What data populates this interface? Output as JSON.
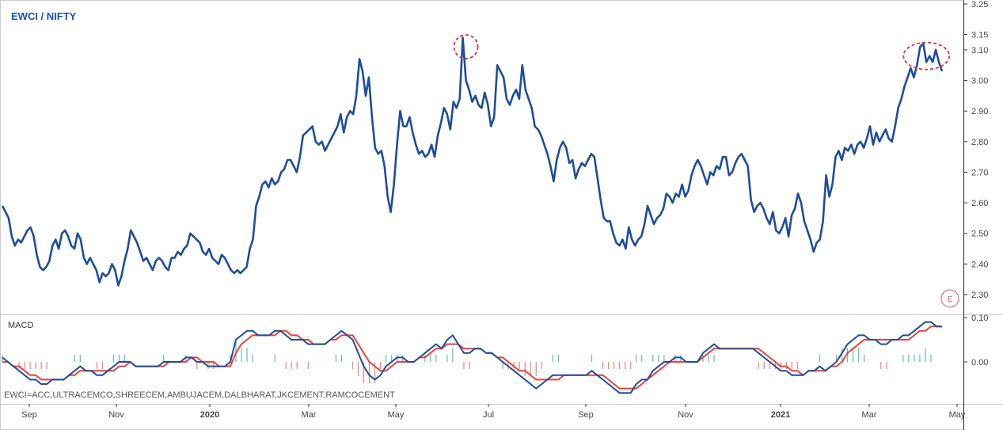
{
  "chart_data": [
    {
      "type": "line",
      "title": "EWCI / NIFTY",
      "y_axis_ticks": [
        "3.25",
        "3.15",
        "3.10",
        "3.00",
        "2.90",
        "2.80",
        "2.70",
        "2.60",
        "2.50",
        "2.40",
        "2.30"
      ],
      "ylim": [
        2.25,
        3.25
      ],
      "x_tick_labels": [
        "Sep",
        "Nov",
        "2020",
        "Mar",
        "May",
        "Jul",
        "Sep",
        "Nov",
        "2021",
        "Mar",
        "May"
      ],
      "series": [
        {
          "color": "#1e4d9b",
          "values": [
            2.59,
            2.57,
            2.55,
            2.49,
            2.46,
            2.48,
            2.47,
            2.49,
            2.51,
            2.52,
            2.49,
            2.43,
            2.39,
            2.38,
            2.39,
            2.41,
            2.46,
            2.48,
            2.45,
            2.5,
            2.51,
            2.49,
            2.46,
            2.45,
            2.5,
            2.48,
            2.42,
            2.4,
            2.42,
            2.4,
            2.38,
            2.34,
            2.37,
            2.36,
            2.37,
            2.4,
            2.38,
            2.33,
            2.36,
            2.41,
            2.45,
            2.51,
            2.49,
            2.47,
            2.44,
            2.41,
            2.42,
            2.4,
            2.38,
            2.41,
            2.42,
            2.41,
            2.39,
            2.38,
            2.42,
            2.42,
            2.44,
            2.43,
            2.45,
            2.46,
            2.5,
            2.49,
            2.48,
            2.47,
            2.44,
            2.43,
            2.45,
            2.42,
            2.41,
            2.4,
            2.43,
            2.42,
            2.4,
            2.38,
            2.37,
            2.38,
            2.37,
            2.38,
            2.39,
            2.45,
            2.48,
            2.59,
            2.62,
            2.66,
            2.67,
            2.65,
            2.68,
            2.66,
            2.67,
            2.7,
            2.71,
            2.74,
            2.74,
            2.72,
            2.7,
            2.75,
            2.82,
            2.83,
            2.84,
            2.85,
            2.8,
            2.79,
            2.8,
            2.77,
            2.79,
            2.81,
            2.83,
            2.85,
            2.89,
            2.83,
            2.88,
            2.9,
            2.89,
            2.95,
            3.07,
            3.03,
            2.95,
            3.01,
            2.88,
            2.78,
            2.76,
            2.77,
            2.72,
            2.62,
            2.57,
            2.66,
            2.79,
            2.9,
            2.85,
            2.85,
            2.88,
            2.83,
            2.79,
            2.76,
            2.77,
            2.75,
            2.76,
            2.79,
            2.75,
            2.82,
            2.86,
            2.91,
            2.89,
            2.84,
            2.93,
            2.91,
            2.94,
            3.14,
            3.0,
            2.97,
            2.93,
            2.95,
            2.92,
            2.91,
            2.96,
            2.92,
            2.85,
            2.88,
            3.05,
            3.03,
            3.01,
            2.94,
            2.92,
            2.95,
            2.97,
            2.94,
            3.05,
            2.97,
            2.94,
            2.91,
            2.85,
            2.84,
            2.82,
            2.79,
            2.76,
            2.72,
            2.67,
            2.74,
            2.78,
            2.8,
            2.78,
            2.73,
            2.74,
            2.68,
            2.71,
            2.73,
            2.72,
            2.74,
            2.76,
            2.75,
            2.68,
            2.61,
            2.55,
            2.54,
            2.54,
            2.5,
            2.47,
            2.46,
            2.48,
            2.45,
            2.52,
            2.48,
            2.46,
            2.48,
            2.49,
            2.53,
            2.59,
            2.56,
            2.53,
            2.55,
            2.56,
            2.58,
            2.63,
            2.62,
            2.6,
            2.63,
            2.62,
            2.66,
            2.62,
            2.64,
            2.69,
            2.72,
            2.74,
            2.72,
            2.69,
            2.66,
            2.7,
            2.69,
            2.72,
            2.71,
            2.75,
            2.75,
            2.69,
            2.7,
            2.73,
            2.75,
            2.76,
            2.74,
            2.72,
            2.61,
            2.57,
            2.59,
            2.6,
            2.58,
            2.55,
            2.53,
            2.57,
            2.51,
            2.5,
            2.52,
            2.55,
            2.49,
            2.56,
            2.58,
            2.63,
            2.6,
            2.54,
            2.51,
            2.48,
            2.44,
            2.47,
            2.48,
            2.54,
            2.69,
            2.62,
            2.66,
            2.75,
            2.77,
            2.74,
            2.78,
            2.77,
            2.79,
            2.76,
            2.79,
            2.8,
            2.78,
            2.81,
            2.85,
            2.79,
            2.83,
            2.8,
            2.82,
            2.84,
            2.81,
            2.8,
            2.85,
            2.91,
            2.94,
            2.98,
            3.01,
            3.04,
            3.01,
            3.05,
            3.11,
            3.12,
            3.06,
            3.08,
            3.06,
            3.1,
            3.06,
            3.03
          ]
        }
      ],
      "annotations": [
        {
          "shape": "dashed-ellipse",
          "color": "#e03030",
          "at_x_index": 148,
          "at_y": 3.11
        },
        {
          "shape": "dashed-ellipse",
          "color": "#e03030",
          "at_x_index": 295,
          "at_y": 3.08
        }
      ],
      "grid": false
    },
    {
      "type": "line",
      "title": "MACD",
      "y_axis_ticks": [
        "0.10",
        "0.00"
      ],
      "ylim": [
        -0.08,
        0.12
      ],
      "series": [
        {
          "color": "#1e4d9b",
          "values": [
            0.01,
            0.0,
            -0.01,
            -0.02,
            -0.03,
            -0.04,
            -0.04,
            -0.05,
            -0.05,
            -0.04,
            -0.04,
            -0.04,
            -0.03,
            -0.02,
            -0.01,
            -0.02,
            -0.02,
            -0.03,
            -0.03,
            -0.02,
            -0.01,
            -0.0,
            0.0,
            0.0,
            -0.01,
            -0.01,
            -0.01,
            -0.01,
            -0.01,
            -0.0,
            0.0,
            0.0,
            0.0,
            0.01,
            0.01,
            0.0,
            0.0,
            -0.01,
            -0.01,
            -0.01,
            -0.01,
            -0.0,
            0.05,
            0.06,
            0.07,
            0.07,
            0.06,
            0.06,
            0.06,
            0.07,
            0.07,
            0.06,
            0.05,
            0.05,
            0.05,
            0.04,
            0.04,
            0.04,
            0.04,
            0.05,
            0.06,
            0.07,
            0.06,
            0.05,
            0.02,
            -0.01,
            -0.03,
            -0.04,
            -0.03,
            -0.01,
            -0.0,
            0.01,
            0.01,
            0.0,
            0.0,
            0.01,
            0.02,
            0.03,
            0.04,
            0.03,
            0.05,
            0.06,
            0.04,
            0.02,
            0.02,
            0.03,
            0.03,
            0.02,
            0.02,
            0.01,
            0.0,
            -0.01,
            -0.02,
            -0.03,
            -0.04,
            -0.05,
            -0.06,
            -0.05,
            -0.04,
            -0.03,
            -0.03,
            -0.03,
            -0.03,
            -0.03,
            -0.03,
            -0.03,
            -0.02,
            -0.03,
            -0.04,
            -0.05,
            -0.06,
            -0.07,
            -0.07,
            -0.07,
            -0.05,
            -0.04,
            -0.04,
            -0.02,
            -0.01,
            -0.0,
            0.0,
            0.01,
            0.01,
            0.0,
            0.0,
            0.0,
            0.02,
            0.03,
            0.04,
            0.03,
            0.03,
            0.03,
            0.03,
            0.03,
            0.03,
            0.03,
            0.02,
            0.01,
            0.0,
            -0.01,
            -0.02,
            -0.02,
            -0.03,
            -0.03,
            -0.03,
            -0.02,
            -0.02,
            -0.01,
            -0.02,
            -0.01,
            0.0,
            0.02,
            0.04,
            0.05,
            0.06,
            0.06,
            0.05,
            0.05,
            0.04,
            0.04,
            0.05,
            0.05,
            0.06,
            0.06,
            0.07,
            0.08,
            0.09,
            0.09,
            0.08,
            0.08
          ]
        },
        {
          "color": "#e8423a",
          "values": [
            0.0,
            0.0,
            -0.01,
            -0.01,
            -0.02,
            -0.03,
            -0.03,
            -0.04,
            -0.04,
            -0.04,
            -0.04,
            -0.04,
            -0.03,
            -0.03,
            -0.02,
            -0.02,
            -0.02,
            -0.02,
            -0.02,
            -0.02,
            -0.02,
            -0.01,
            -0.01,
            -0.0,
            -0.01,
            -0.01,
            -0.01,
            -0.01,
            -0.01,
            -0.01,
            -0.0,
            -0.0,
            0.0,
            0.0,
            0.01,
            0.01,
            0.0,
            0.0,
            -0.0,
            -0.01,
            -0.01,
            -0.01,
            0.02,
            0.04,
            0.05,
            0.06,
            0.06,
            0.06,
            0.06,
            0.06,
            0.07,
            0.07,
            0.06,
            0.06,
            0.05,
            0.05,
            0.04,
            0.04,
            0.04,
            0.05,
            0.05,
            0.06,
            0.06,
            0.06,
            0.04,
            0.02,
            0.0,
            -0.01,
            -0.02,
            -0.02,
            -0.01,
            -0.0,
            0.0,
            0.0,
            0.0,
            0.01,
            0.01,
            0.02,
            0.03,
            0.03,
            0.04,
            0.04,
            0.04,
            0.03,
            0.03,
            0.03,
            0.03,
            0.02,
            0.02,
            0.01,
            0.01,
            0.0,
            -0.01,
            -0.02,
            -0.02,
            -0.03,
            -0.04,
            -0.04,
            -0.04,
            -0.04,
            -0.04,
            -0.03,
            -0.03,
            -0.03,
            -0.03,
            -0.03,
            -0.03,
            -0.03,
            -0.03,
            -0.04,
            -0.05,
            -0.06,
            -0.06,
            -0.06,
            -0.06,
            -0.05,
            -0.04,
            -0.03,
            -0.02,
            -0.01,
            -0.0,
            0.0,
            0.0,
            0.0,
            0.0,
            0.0,
            0.01,
            0.02,
            0.03,
            0.03,
            0.03,
            0.03,
            0.03,
            0.03,
            0.03,
            0.03,
            0.03,
            0.02,
            0.01,
            0.0,
            -0.01,
            -0.01,
            -0.02,
            -0.02,
            -0.03,
            -0.02,
            -0.02,
            -0.02,
            -0.02,
            -0.01,
            -0.01,
            0.0,
            0.02,
            0.03,
            0.04,
            0.05,
            0.05,
            0.05,
            0.05,
            0.05,
            0.05,
            0.05,
            0.05,
            0.05,
            0.06,
            0.07,
            0.07,
            0.08,
            0.08,
            0.08
          ]
        }
      ],
      "histogram": true,
      "histogram_colors": {
        "positive": "#26a69a",
        "negative": "#ef5350"
      },
      "footnote": "EWCI=ACC,ULTRACEMCO,SHREECEM,AMBUJACEM,DALBHARAT,JKCEMENT,RAMCOCEMENT"
    }
  ],
  "badge": "E",
  "axis_color": "#333333",
  "border_color": "#cccccc"
}
